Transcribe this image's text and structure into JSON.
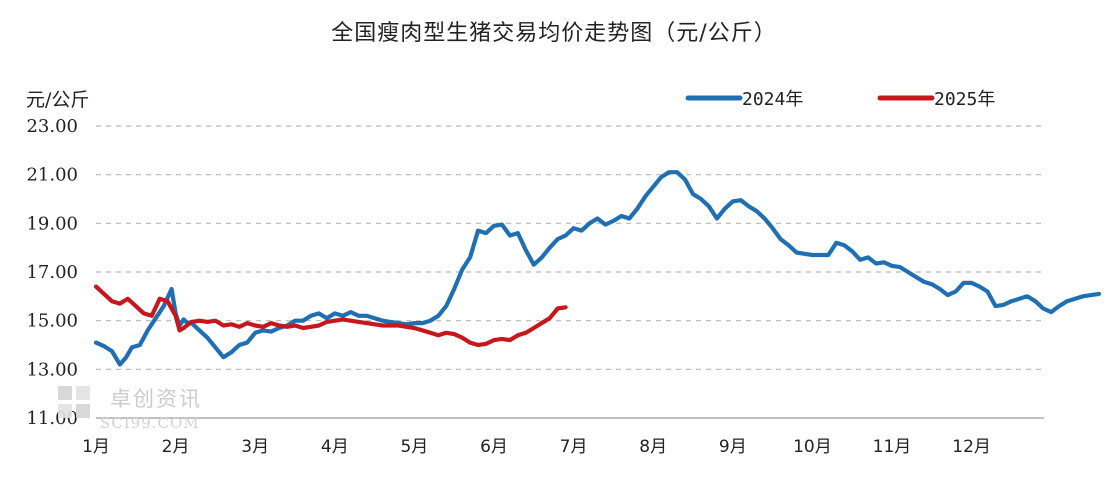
{
  "chart_data": {
    "type": "line",
    "title": "全国瘦肉型生猪交易均价走势图（元/公斤）",
    "ylabel": "元/公斤",
    "ylim": [
      11,
      23
    ],
    "ytick_labels": [
      "23.00",
      "21.00",
      "19.00",
      "17.00",
      "15.00",
      "13.00",
      "11.00"
    ],
    "yticks": [
      23,
      21,
      19,
      17,
      15,
      13,
      11
    ],
    "xlim": [
      1,
      13.6
    ],
    "xticks": [
      1,
      2,
      3,
      4,
      5,
      6,
      7,
      8,
      9,
      10,
      11,
      12
    ],
    "xtick_labels": [
      "1月",
      "2月",
      "3月",
      "4月",
      "5月",
      "6月",
      "7月",
      "8月",
      "9月",
      "10月",
      "11月",
      "12月"
    ],
    "legend_position": "top-right",
    "grid": true,
    "series": [
      {
        "name": "2024年",
        "color": "#1f6fb4",
        "x": [
          1.0,
          1.1,
          1.2,
          1.3,
          1.38,
          1.45,
          1.55,
          1.65,
          1.75,
          1.85,
          1.95,
          2.0,
          2.05,
          2.1,
          2.15,
          2.2,
          2.3,
          2.4,
          2.5,
          2.6,
          2.7,
          2.8,
          2.9,
          3.0,
          3.1,
          3.2,
          3.3,
          3.4,
          3.5,
          3.6,
          3.7,
          3.8,
          3.9,
          4.0,
          4.1,
          4.2,
          4.3,
          4.4,
          4.5,
          4.6,
          4.7,
          4.8,
          4.9,
          5.0,
          5.1,
          5.2,
          5.3,
          5.4,
          5.5,
          5.6,
          5.7,
          5.8,
          5.9,
          6.0,
          6.1,
          6.2,
          6.3,
          6.4,
          6.5,
          6.6,
          6.7,
          6.8,
          6.9,
          7.0,
          7.1,
          7.2,
          7.3,
          7.4,
          7.5,
          7.6,
          7.7,
          7.8,
          7.9,
          8.0,
          8.1,
          8.2,
          8.3,
          8.4,
          8.5,
          8.6,
          8.7,
          8.8,
          8.9,
          9.0,
          9.1,
          9.2,
          9.3,
          9.4,
          9.5,
          9.6,
          9.7,
          9.8,
          9.9,
          10.0,
          10.1,
          10.2,
          10.3,
          10.4,
          10.5,
          10.6,
          10.7,
          10.8,
          10.9,
          11.0,
          11.1,
          11.2,
          11.3,
          11.4,
          11.5,
          11.6,
          11.7,
          11.8,
          11.9,
          12.0,
          12.1,
          12.2,
          12.3,
          12.4,
          12.5,
          12.6,
          12.7,
          12.8,
          12.9,
          13.0,
          13.1,
          13.2,
          13.3,
          13.4,
          13.5,
          13.6
        ],
        "values": [
          14.1,
          13.95,
          13.75,
          13.2,
          13.5,
          13.9,
          14.0,
          14.6,
          15.1,
          15.6,
          16.3,
          15.3,
          14.8,
          15.05,
          14.9,
          14.9,
          14.6,
          14.3,
          13.9,
          13.5,
          13.7,
          14.0,
          14.1,
          14.5,
          14.6,
          14.55,
          14.7,
          14.8,
          15.0,
          15.0,
          15.2,
          15.3,
          15.1,
          15.3,
          15.2,
          15.35,
          15.2,
          15.2,
          15.1,
          15.0,
          14.95,
          14.9,
          14.85,
          14.9,
          14.9,
          15.0,
          15.2,
          15.6,
          16.3,
          17.1,
          17.6,
          18.7,
          18.6,
          18.9,
          18.95,
          18.5,
          18.6,
          17.9,
          17.3,
          17.6,
          18.0,
          18.35,
          18.5,
          18.8,
          18.7,
          19.0,
          19.2,
          18.95,
          19.1,
          19.3,
          19.2,
          19.6,
          20.1,
          20.5,
          20.9,
          21.1,
          21.1,
          20.8,
          20.2,
          20.0,
          19.7,
          19.2,
          19.6,
          19.9,
          19.95,
          19.7,
          19.5,
          19.2,
          18.8,
          18.35,
          18.1,
          17.8,
          17.75,
          17.7,
          17.7,
          17.7,
          18.2,
          18.1,
          17.85,
          17.5,
          17.6,
          17.35,
          17.4,
          17.25,
          17.2,
          17.0,
          16.8,
          16.6,
          16.5,
          16.3,
          16.05,
          16.2,
          16.55,
          16.55,
          16.4,
          16.2,
          15.6,
          15.65,
          15.8,
          15.9,
          16.0,
          15.8,
          15.5,
          15.35,
          15.6,
          15.8,
          15.9,
          16.0,
          16.05,
          16.1
        ],
        "label_x_note": "x in month units (1 = 1月 tick)"
      },
      {
        "name": "2025年",
        "color": "#c8161d",
        "x": [
          1.0,
          1.1,
          1.2,
          1.3,
          1.4,
          1.5,
          1.6,
          1.7,
          1.8,
          1.9,
          2.0,
          2.05,
          2.1,
          2.2,
          2.3,
          2.4,
          2.5,
          2.6,
          2.7,
          2.8,
          2.9,
          3.0,
          3.1,
          3.2,
          3.3,
          3.4,
          3.5,
          3.6,
          3.7,
          3.8,
          3.9,
          4.0,
          4.1,
          4.2,
          4.3,
          4.4,
          4.5,
          4.6,
          4.7,
          4.8,
          4.9,
          5.0,
          5.1,
          5.2,
          5.3,
          5.4,
          5.5,
          5.6,
          5.7,
          5.8,
          5.9,
          6.0,
          6.1,
          6.2,
          6.3,
          6.4,
          6.5,
          6.6,
          6.7,
          6.8,
          6.9
        ],
        "values": [
          16.4,
          16.1,
          15.8,
          15.7,
          15.9,
          15.6,
          15.3,
          15.2,
          15.9,
          15.8,
          15.2,
          14.6,
          14.7,
          14.95,
          15.0,
          14.95,
          15.0,
          14.8,
          14.85,
          14.75,
          14.9,
          14.8,
          14.75,
          14.9,
          14.8,
          14.75,
          14.8,
          14.7,
          14.75,
          14.8,
          14.95,
          15.0,
          15.05,
          15.0,
          14.95,
          14.9,
          14.85,
          14.8,
          14.8,
          14.8,
          14.75,
          14.7,
          14.6,
          14.5,
          14.4,
          14.5,
          14.45,
          14.3,
          14.1,
          14.0,
          14.05,
          14.2,
          14.25,
          14.2,
          14.4,
          14.5,
          14.7,
          14.9,
          15.1,
          15.5,
          15.55
        ]
      }
    ],
    "watermark": {
      "name": "卓创资讯",
      "url": "SCI99.COM"
    }
  }
}
